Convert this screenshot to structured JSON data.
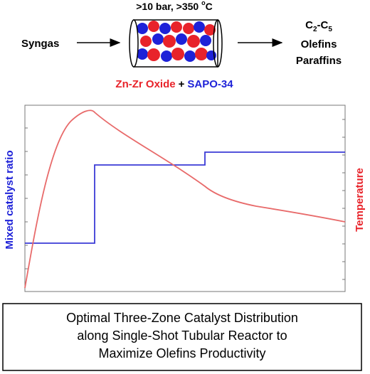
{
  "header": {
    "conditions": [
      ">10 bar, >350 ",
      "o",
      "C"
    ],
    "feed": "Syngas",
    "product_formula": [
      "C",
      "2",
      "-C",
      "5"
    ],
    "product_lines": [
      "Olefins",
      "Paraffins"
    ],
    "catalyst": {
      "oxide": "Zn-Zr Oxide",
      "plus": "+",
      "zeolite": "SAPO-34"
    }
  },
  "plot": {
    "left_axis_label": "Mixed catalyst ratio",
    "right_axis_label": "Temperature"
  },
  "caption": [
    "Optimal Three-Zone Catalyst Distribution",
    "along Single-Shot Tubular Reactor to",
    "Maximize Olefins Productivity"
  ]
}
